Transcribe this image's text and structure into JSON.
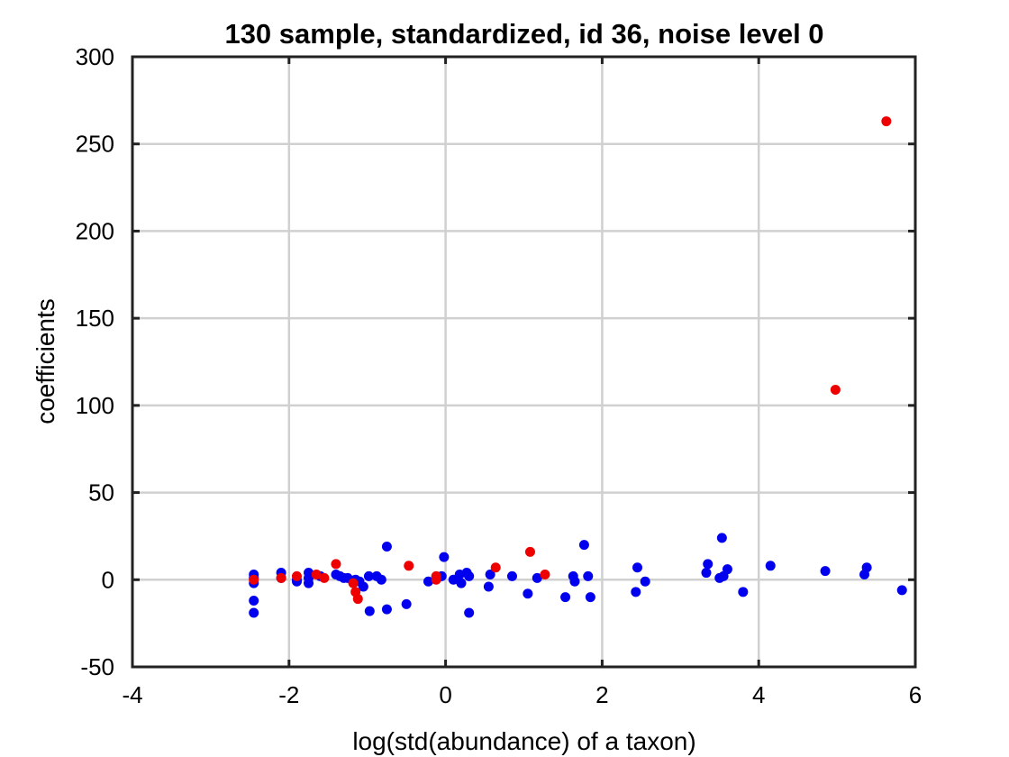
{
  "chart_data": {
    "type": "scatter",
    "title": "130 sample, standardized, id 36, noise level 0",
    "xlabel": "log(std(abundance) of a taxon)",
    "ylabel": "coefficients",
    "xlim": [
      -4,
      6
    ],
    "ylim": [
      -50,
      300
    ],
    "xticks": [
      -4,
      -2,
      0,
      2,
      4,
      6
    ],
    "yticks": [
      -50,
      0,
      50,
      100,
      150,
      200,
      250,
      300
    ],
    "xtick_labels": [
      "-4",
      "-2",
      "0",
      "2",
      "4",
      "6"
    ],
    "ytick_labels": [
      "-50",
      "0",
      "50",
      "100",
      "150",
      "200",
      "250",
      "300"
    ],
    "grid": true,
    "series": [
      {
        "color": "#0000ee",
        "points": [
          [
            -2.45,
            3
          ],
          [
            -2.45,
            1
          ],
          [
            -2.45,
            -2
          ],
          [
            -2.45,
            -12
          ],
          [
            -2.45,
            -19
          ],
          [
            -2.1,
            4
          ],
          [
            -2.1,
            1
          ],
          [
            -1.9,
            0
          ],
          [
            -1.9,
            -1
          ],
          [
            -1.75,
            4
          ],
          [
            -1.75,
            1
          ],
          [
            -1.75,
            -2
          ],
          [
            -1.6,
            2
          ],
          [
            -1.4,
            3
          ],
          [
            -1.35,
            2
          ],
          [
            -1.3,
            1
          ],
          [
            -1.25,
            1
          ],
          [
            -1.15,
            0
          ],
          [
            -1.1,
            -1
          ],
          [
            -1.05,
            -4
          ],
          [
            -0.98,
            2
          ],
          [
            -0.97,
            -18
          ],
          [
            -0.88,
            2
          ],
          [
            -0.82,
            0
          ],
          [
            -0.75,
            19
          ],
          [
            -0.75,
            -17
          ],
          [
            -0.5,
            -14
          ],
          [
            -0.22,
            -1
          ],
          [
            -0.05,
            2
          ],
          [
            -0.02,
            13
          ],
          [
            0.1,
            0
          ],
          [
            0.18,
            3
          ],
          [
            0.2,
            -2
          ],
          [
            0.27,
            4
          ],
          [
            0.3,
            2
          ],
          [
            0.3,
            -19
          ],
          [
            0.55,
            -4
          ],
          [
            0.57,
            3
          ],
          [
            0.85,
            2
          ],
          [
            1.05,
            -8
          ],
          [
            1.17,
            1
          ],
          [
            1.53,
            -10
          ],
          [
            1.63,
            2
          ],
          [
            1.65,
            -1
          ],
          [
            1.77,
            20
          ],
          [
            1.82,
            2
          ],
          [
            1.85,
            -10
          ],
          [
            2.43,
            -7
          ],
          [
            2.45,
            7
          ],
          [
            2.55,
            -1
          ],
          [
            3.33,
            4
          ],
          [
            3.35,
            9
          ],
          [
            3.5,
            1
          ],
          [
            3.53,
            24
          ],
          [
            3.55,
            2
          ],
          [
            3.6,
            6
          ],
          [
            3.8,
            -7
          ],
          [
            4.15,
            8
          ],
          [
            4.85,
            5
          ],
          [
            5.35,
            3
          ],
          [
            5.38,
            7
          ],
          [
            5.83,
            -6
          ]
        ]
      },
      {
        "color": "#ee0000",
        "points": [
          [
            -2.45,
            0
          ],
          [
            -2.1,
            1
          ],
          [
            -1.9,
            2
          ],
          [
            -1.65,
            3
          ],
          [
            -1.55,
            1
          ],
          [
            -1.4,
            9
          ],
          [
            -1.18,
            -2
          ],
          [
            -1.15,
            -7
          ],
          [
            -1.12,
            -11
          ],
          [
            -0.47,
            8
          ],
          [
            -0.12,
            2
          ],
          [
            -0.12,
            0
          ],
          [
            0.64,
            7
          ],
          [
            1.08,
            16
          ],
          [
            1.27,
            3
          ],
          [
            4.98,
            109
          ],
          [
            5.63,
            263
          ]
        ]
      }
    ]
  }
}
